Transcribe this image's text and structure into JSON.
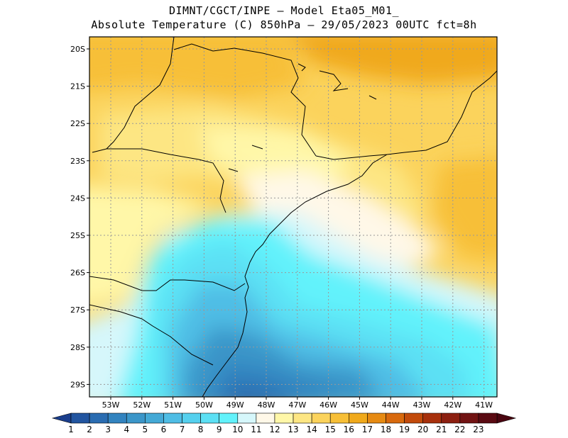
{
  "header": {
    "line1": "DIMNT/CGCT/INPE –  Model Eta05_M01_",
    "line2": "Absolute Temperature (C) 850hPa –  29/05/2023 00UTC fct=8h"
  },
  "axes": {
    "lon_labels": [
      "53W",
      "52W",
      "51W",
      "50W",
      "49W",
      "48W",
      "47W",
      "46W",
      "45W",
      "44W",
      "43W",
      "42W",
      "41W"
    ],
    "lat_labels": [
      "20S",
      "21S",
      "22S",
      "23S",
      "24S",
      "25S",
      "26S",
      "27S",
      "28S",
      "29S"
    ]
  },
  "colorbar": {
    "labels": [
      "1",
      "2",
      "3",
      "4",
      "5",
      "6",
      "7",
      "8",
      "9",
      "10",
      "11",
      "12",
      "13",
      "14",
      "15",
      "16",
      "17",
      "18",
      "19",
      "20",
      "21",
      "22",
      "23"
    ],
    "colors": [
      "#2255a0",
      "#2a6cb1",
      "#3283bf",
      "#3b96c9",
      "#44a9d6",
      "#4fbde5",
      "#55d0ee",
      "#5ce0f4",
      "#62f2fb",
      "#d6f7fb",
      "#fff8e8",
      "#fff7a8",
      "#fde683",
      "#fbd35c",
      "#f7bf37",
      "#f0a91b",
      "#e68a12",
      "#d8690d",
      "#c24a0b",
      "#a7300c",
      "#8c1f10",
      "#711313",
      "#5a0a12"
    ],
    "end_color_low": "#1a3e8c",
    "end_color_high": "#4a0510"
  }
}
